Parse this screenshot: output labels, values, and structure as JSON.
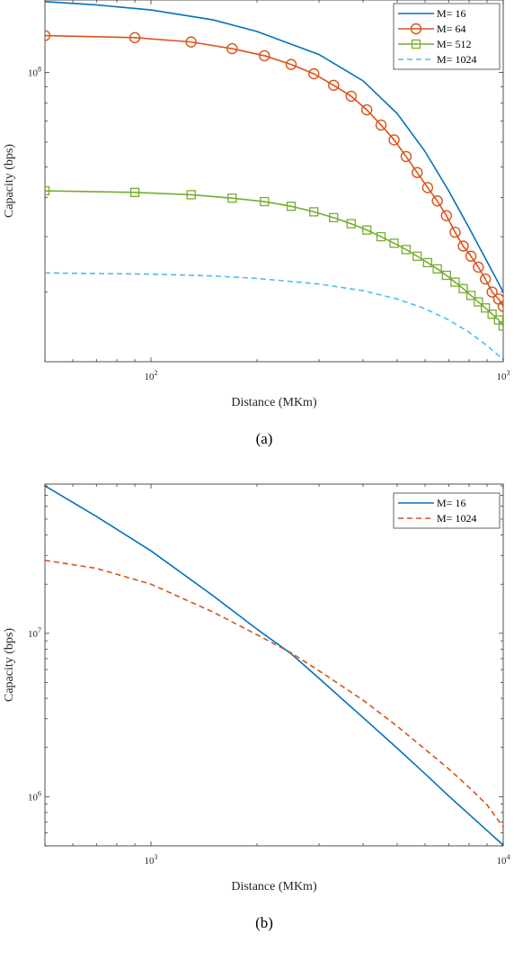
{
  "chart_data": [
    {
      "type": "line",
      "panel_label": "(a)",
      "xlabel": "Distance (MKm)",
      "ylabel": "Capacity (bps)",
      "xscale": "log",
      "yscale": "log",
      "xlim": [
        50,
        1000
      ],
      "ylim": [
        12000000,
        170000000
      ],
      "x_ticks": [
        {
          "value": 100,
          "base": "10",
          "exp": "2"
        },
        {
          "value": 1000,
          "base": "10",
          "exp": "3"
        }
      ],
      "y_ticks": [
        {
          "value": 100000000,
          "base": "10",
          "exp": "8"
        }
      ],
      "grid": false,
      "legend_position": "top-right",
      "colors": {
        "M16": "#0072BD",
        "M64": "#D95319",
        "M512": "#77AC30",
        "M1024": "#4DBEEE"
      },
      "series": [
        {
          "name": "M= 16",
          "style": "solid",
          "marker": "none",
          "x": [
            50,
            70,
            100,
            150,
            200,
            300,
            400,
            500,
            600,
            700,
            800,
            900,
            1000
          ],
          "y": [
            168000000,
            164000000,
            158000000,
            147000000,
            135000000,
            114000000,
            94000000,
            74000000,
            56000000,
            42000000,
            32000000,
            25000000,
            20000000
          ]
        },
        {
          "name": "M= 64",
          "style": "solid",
          "marker": "circle",
          "x": [
            50,
            90,
            130,
            170,
            210,
            250,
            290,
            330,
            370,
            410,
            450,
            490,
            530,
            570,
            610,
            650,
            690,
            730,
            770,
            810,
            850,
            890,
            930,
            970,
            1000
          ],
          "y": [
            131000000,
            129000000,
            125000000,
            119000000,
            113000000,
            106000000,
            99000000,
            91000000,
            84000000,
            76000000,
            68000000,
            61000000,
            54000000,
            48000000,
            43000000,
            39000000,
            35000000,
            31000000,
            28000000,
            26000000,
            24000000,
            22000000,
            20000000,
            19000000,
            18000000
          ]
        },
        {
          "name": "M= 512",
          "style": "solid",
          "marker": "square",
          "x": [
            50,
            90,
            130,
            170,
            210,
            250,
            290,
            330,
            370,
            410,
            450,
            490,
            530,
            570,
            610,
            650,
            690,
            730,
            770,
            810,
            850,
            890,
            930,
            970,
            1000
          ],
          "y": [
            42000000,
            41500000,
            40800000,
            39800000,
            38800000,
            37500000,
            36000000,
            34500000,
            33000000,
            31500000,
            30000000,
            28600000,
            27300000,
            26000000,
            24800000,
            23700000,
            22600000,
            21500000,
            20500000,
            19500000,
            18600000,
            17800000,
            17000000,
            16300000,
            15600000
          ]
        },
        {
          "name": "M= 1024",
          "style": "dashed",
          "marker": "none",
          "x": [
            50,
            100,
            150,
            200,
            300,
            400,
            500,
            600,
            700,
            800,
            900,
            1000
          ],
          "y": [
            23000000,
            22800000,
            22500000,
            22100000,
            21200000,
            20200000,
            19000000,
            17700000,
            16300000,
            14900000,
            13500000,
            12200000
          ]
        }
      ]
    },
    {
      "type": "line",
      "panel_label": "(b)",
      "xlabel": "Distance (MKm)",
      "ylabel": "Capacity (bps)",
      "xscale": "log",
      "yscale": "log",
      "xlim": [
        500,
        10000
      ],
      "ylim": [
        500000,
        82000000
      ],
      "x_ticks": [
        {
          "value": 1000,
          "base": "10",
          "exp": "3"
        },
        {
          "value": 10000,
          "base": "10",
          "exp": "4"
        }
      ],
      "y_ticks": [
        {
          "value": 1000000,
          "base": "10",
          "exp": "6"
        },
        {
          "value": 10000000,
          "base": "10",
          "exp": "7"
        }
      ],
      "grid": false,
      "legend_position": "top-right",
      "colors": {
        "M16": "#0072BD",
        "M1024": "#D95319"
      },
      "series": [
        {
          "name": "M= 16",
          "style": "solid",
          "marker": "none",
          "x": [
            500,
            700,
            1000,
            1500,
            2000,
            2500,
            3000,
            4000,
            5000,
            6000,
            7000,
            8000,
            9000,
            10000
          ],
          "y": [
            80000000,
            52000000,
            32000000,
            17000000,
            10600000,
            7500000,
            5300000,
            3050000,
            1980000,
            1380000,
            1010000,
            780000,
            620000,
            505000
          ]
        },
        {
          "name": "M= 1024",
          "style": "dashed",
          "marker": "none",
          "x": [
            500,
            700,
            1000,
            1500,
            2000,
            2500,
            3000,
            4000,
            5000,
            6000,
            7000,
            8000,
            9000,
            10000
          ],
          "y": [
            28000000,
            25000000,
            20000000,
            13500000,
            9800000,
            7600000,
            5900000,
            3900000,
            2700000,
            1950000,
            1480000,
            1140000,
            890000,
            650000
          ]
        }
      ]
    }
  ]
}
